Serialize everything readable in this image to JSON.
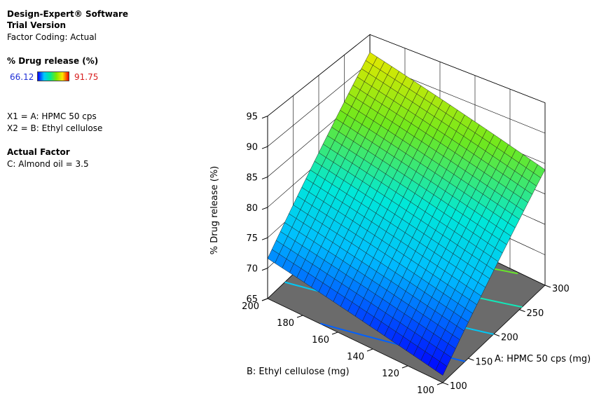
{
  "header": {
    "software": "Design-Expert® Software",
    "trial": "Trial Version",
    "coding": "Factor Coding: Actual"
  },
  "response": {
    "title": "% Drug release (%)",
    "min": "66.12",
    "max": "91.75"
  },
  "factors": {
    "x1": "X1 = A: HPMC 50 cps",
    "x2": "X2 = B: Ethyl cellulose"
  },
  "actual_factor": {
    "title": "Actual Factor",
    "c": "C: Almond oil = 3.5"
  },
  "chart_data": {
    "type": "surface",
    "title": "",
    "xlabel": "A: HPMC 50 cps (mg)",
    "ylabel": "B: Ethyl cellulose  (mg)",
    "zlabel": "% Drug release (%)",
    "x_range": [
      100,
      300
    ],
    "y_range": [
      100,
      200
    ],
    "z_range": [
      65,
      95
    ],
    "x_ticks": [
      100,
      150,
      200,
      250,
      300
    ],
    "y_ticks": [
      100,
      120,
      140,
      160,
      180,
      200
    ],
    "z_ticks": [
      65,
      70,
      75,
      80,
      85,
      90,
      95
    ],
    "x_tick_labels": [
      "100",
      "150",
      "200",
      "250",
      "300"
    ],
    "y_tick_labels": [
      "100",
      "120",
      "140",
      "160",
      "180",
      "200"
    ],
    "z_tick_labels": [
      "65",
      "70",
      "75",
      "80",
      "85",
      "90",
      "95"
    ],
    "corner_values": [
      {
        "x": 100,
        "y": 100,
        "z": 66.1
      },
      {
        "x": 300,
        "y": 100,
        "z": 84.0
      },
      {
        "x": 300,
        "y": 200,
        "z": 91.8
      },
      {
        "x": 100,
        "y": 200,
        "z": 71.6
      }
    ],
    "color_range": [
      66.12,
      91.75
    ],
    "grid": true,
    "floor_contours": true,
    "colors": {
      "floor": "#6b6b6b",
      "low": "#0000ff",
      "mid": "#00e8d8",
      "high": "#ffe600"
    }
  }
}
